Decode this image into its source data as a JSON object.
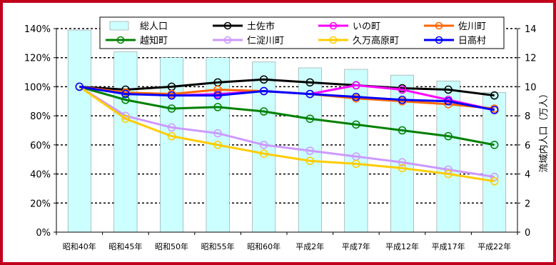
{
  "chart_data": {
    "type": "bar+line",
    "categories": [
      "昭和40年",
      "昭和45年",
      "昭和50年",
      "昭和55年",
      "昭和60年",
      "平成2年",
      "平成7年",
      "平成12年",
      "平成17年",
      "平成22年"
    ],
    "bar_series": {
      "name": "総人口",
      "values": [
        13.9,
        12.4,
        12.0,
        12.0,
        11.7,
        11.3,
        11.2,
        10.8,
        10.4,
        9.6
      ],
      "color": "#ccffff",
      "axis": "right"
    },
    "series": [
      {
        "name": "土佐市",
        "color": "#000000",
        "values": [
          100,
          98,
          100,
          103,
          105,
          103,
          101,
          99,
          98,
          94
        ]
      },
      {
        "name": "いの町",
        "color": "#ff00ff",
        "values": [
          100,
          96,
          94,
          95,
          97,
          95,
          101,
          98,
          91,
          84
        ]
      },
      {
        "name": "佐川町",
        "color": "#ff6600",
        "values": [
          100,
          96,
          95,
          98,
          97,
          95,
          92,
          90,
          88,
          85
        ]
      },
      {
        "name": "越知町",
        "color": "#008000",
        "values": [
          100,
          91,
          85,
          86,
          83,
          78,
          74,
          70,
          66,
          60
        ]
      },
      {
        "name": "仁淀川町",
        "color": "#cc99ff",
        "values": [
          100,
          80,
          72,
          68,
          60,
          56,
          52,
          48,
          43,
          38
        ]
      },
      {
        "name": "久万高原町",
        "color": "#ffcc00",
        "values": [
          100,
          78,
          66,
          60,
          54,
          49,
          47,
          44,
          40,
          35
        ]
      },
      {
        "name": "日高村",
        "color": "#0000ff",
        "values": [
          100,
          95,
          94,
          94,
          97,
          95,
          93,
          91,
          90,
          84
        ]
      }
    ],
    "y_left": {
      "ticks": [
        "0%",
        "20%",
        "40%",
        "60%",
        "80%",
        "100%",
        "120%",
        "140%"
      ],
      "ylim": [
        0,
        140
      ]
    },
    "y_right": {
      "label": "流域内人口（万人）",
      "ticks": [
        "0",
        "2",
        "4",
        "6",
        "8",
        "10",
        "12",
        "14"
      ],
      "ylim": [
        0,
        14
      ]
    },
    "grid": "dotted-horizontal",
    "legend_position": "top"
  }
}
